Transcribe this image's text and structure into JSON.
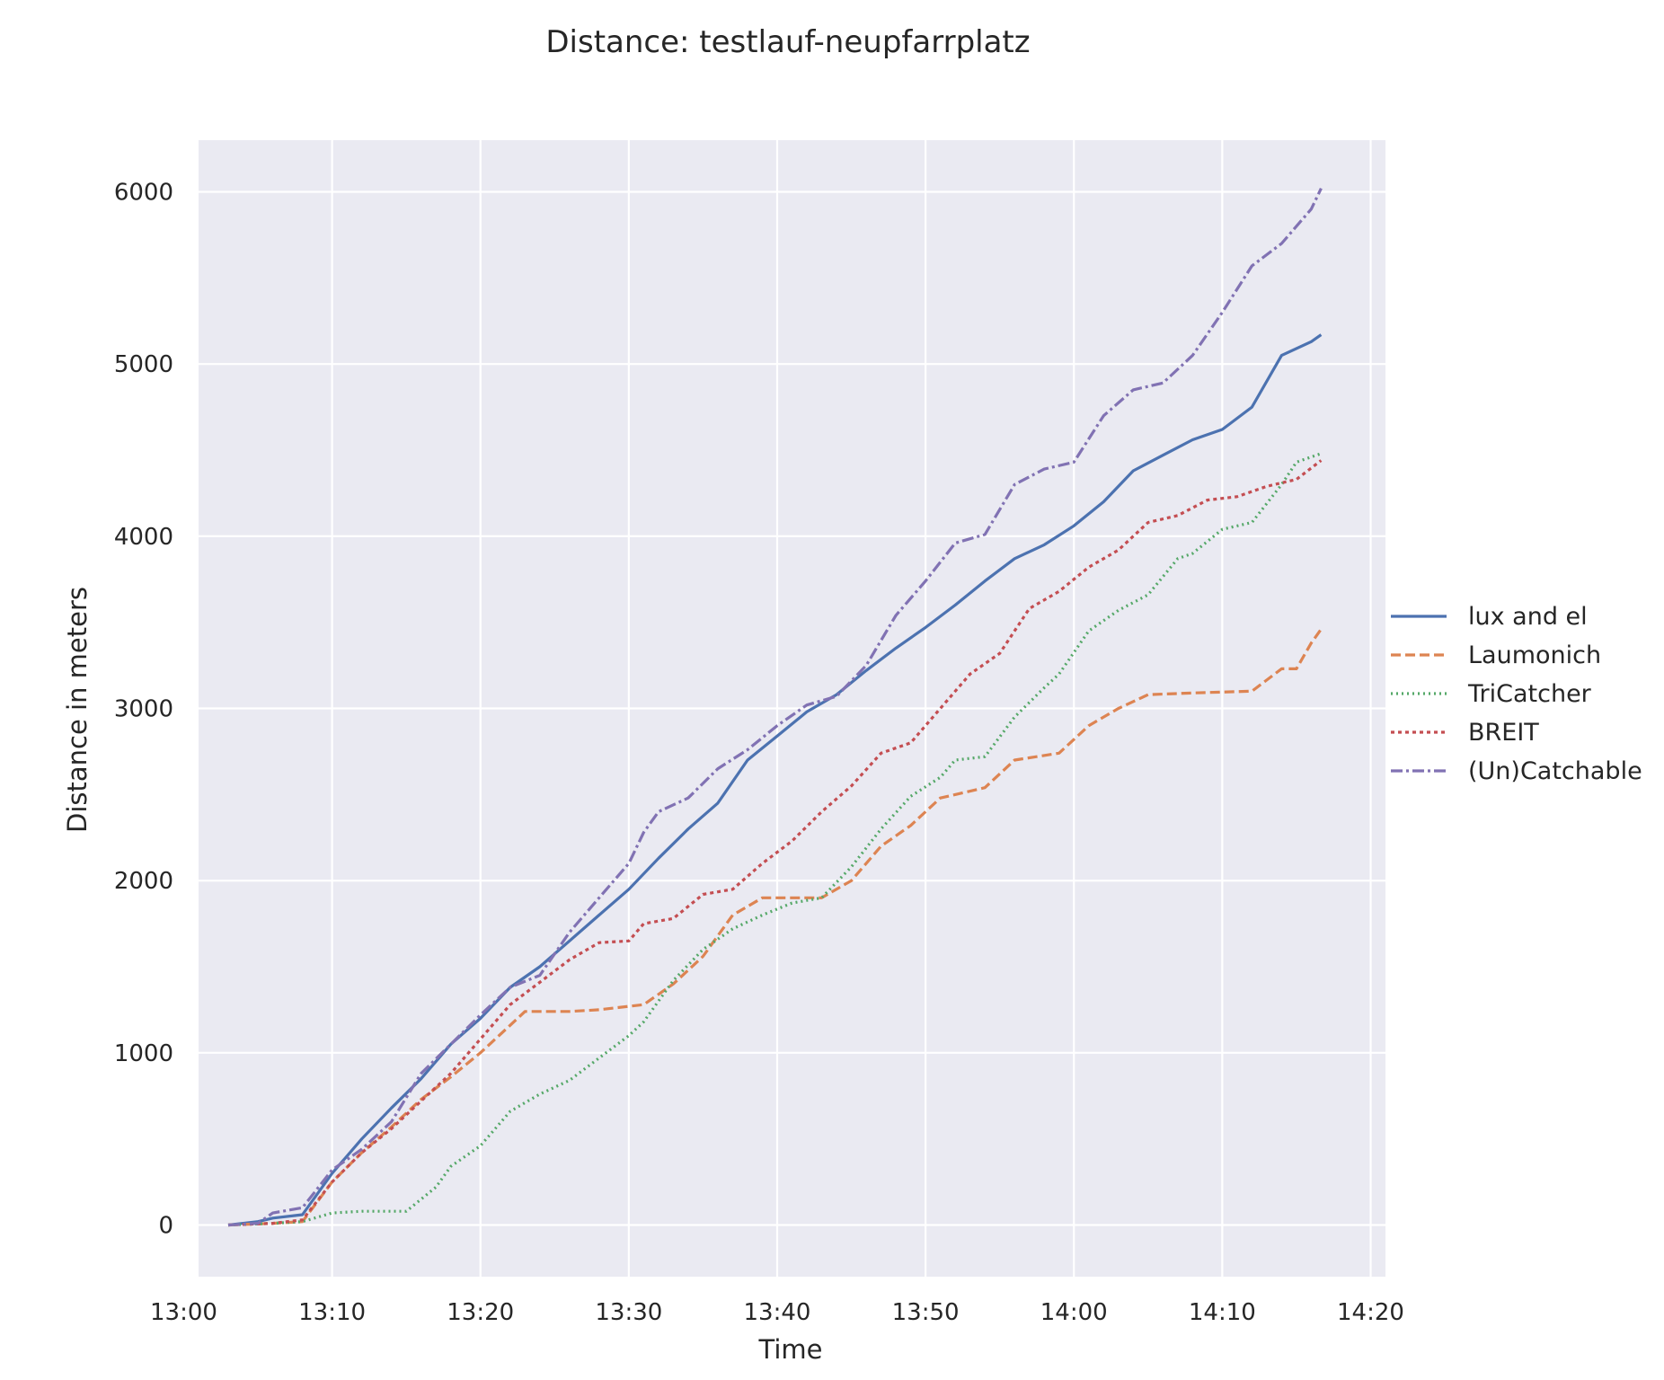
{
  "chart_data": {
    "type": "line",
    "title": "Distance: testlauf-neupfarrplatz",
    "xlabel": "Time",
    "ylabel": "Distance in meters",
    "xlim": [
      "13:01",
      "14:21"
    ],
    "ylim": [
      -300,
      6300
    ],
    "x_ticks": [
      "13:00",
      "13:10",
      "13:20",
      "13:30",
      "13:40",
      "13:50",
      "14:00",
      "14:10",
      "14:20"
    ],
    "y_ticks": [
      0,
      1000,
      2000,
      3000,
      4000,
      5000,
      6000
    ],
    "grid": true,
    "legend_position": "right",
    "background": "#eaeaf2",
    "series": [
      {
        "name": "lux and el",
        "color": "#4c72b0",
        "dash": "solid",
        "points": [
          [
            "13:03",
            0
          ],
          [
            "13:05",
            20
          ],
          [
            "13:06",
            40
          ],
          [
            "13:08",
            60
          ],
          [
            "13:10",
            300
          ],
          [
            "13:12",
            500
          ],
          [
            "13:14",
            680
          ],
          [
            "13:16",
            850
          ],
          [
            "13:18",
            1050
          ],
          [
            "13:20",
            1200
          ],
          [
            "13:22",
            1380
          ],
          [
            "13:24",
            1500
          ],
          [
            "13:26",
            1650
          ],
          [
            "13:28",
            1800
          ],
          [
            "13:30",
            1950
          ],
          [
            "13:32",
            2130
          ],
          [
            "13:34",
            2300
          ],
          [
            "13:36",
            2450
          ],
          [
            "13:38",
            2700
          ],
          [
            "13:40",
            2840
          ],
          [
            "13:42",
            2980
          ],
          [
            "13:44",
            3080
          ],
          [
            "13:46",
            3220
          ],
          [
            "13:48",
            3350
          ],
          [
            "13:50",
            3470
          ],
          [
            "13:52",
            3600
          ],
          [
            "13:54",
            3740
          ],
          [
            "13:56",
            3870
          ],
          [
            "13:58",
            3950
          ],
          [
            "14:00",
            4060
          ],
          [
            "14:02",
            4200
          ],
          [
            "14:04",
            4380
          ],
          [
            "14:06",
            4470
          ],
          [
            "14:08",
            4560
          ],
          [
            "14:10",
            4620
          ],
          [
            "14:12",
            4750
          ],
          [
            "14:14",
            5050
          ],
          [
            "14:16",
            5130
          ],
          [
            "14:16:40",
            5170
          ]
        ]
      },
      {
        "name": "Laumonich",
        "color": "#dd8452",
        "dash": "dashed",
        "points": [
          [
            "13:03",
            0
          ],
          [
            "13:06",
            10
          ],
          [
            "13:08",
            20
          ],
          [
            "13:10",
            250
          ],
          [
            "13:12",
            420
          ],
          [
            "13:14",
            570
          ],
          [
            "13:16",
            730
          ],
          [
            "13:18",
            860
          ],
          [
            "13:20",
            1000
          ],
          [
            "13:22",
            1160
          ],
          [
            "13:23",
            1240
          ],
          [
            "13:26",
            1240
          ],
          [
            "13:28",
            1250
          ],
          [
            "13:31",
            1280
          ],
          [
            "13:33",
            1400
          ],
          [
            "13:35",
            1560
          ],
          [
            "13:37",
            1800
          ],
          [
            "13:39",
            1900
          ],
          [
            "13:43",
            1900
          ],
          [
            "13:45",
            2000
          ],
          [
            "13:47",
            2200
          ],
          [
            "13:49",
            2320
          ],
          [
            "13:51",
            2480
          ],
          [
            "13:54",
            2540
          ],
          [
            "13:56",
            2700
          ],
          [
            "13:59",
            2740
          ],
          [
            "14:01",
            2900
          ],
          [
            "14:03",
            3000
          ],
          [
            "14:05",
            3080
          ],
          [
            "14:08",
            3090
          ],
          [
            "14:12",
            3100
          ],
          [
            "14:14",
            3230
          ],
          [
            "14:15",
            3230
          ],
          [
            "14:16",
            3380
          ],
          [
            "14:16:40",
            3460
          ]
        ]
      },
      {
        "name": "TriCatcher",
        "color": "#55a868",
        "dash": "dotted",
        "points": [
          [
            "13:03",
            0
          ],
          [
            "13:06",
            10
          ],
          [
            "13:08",
            20
          ],
          [
            "13:10",
            70
          ],
          [
            "13:12",
            80
          ],
          [
            "13:15",
            80
          ],
          [
            "13:17",
            220
          ],
          [
            "13:18",
            340
          ],
          [
            "13:20",
            460
          ],
          [
            "13:22",
            660
          ],
          [
            "13:24",
            760
          ],
          [
            "13:26",
            840
          ],
          [
            "13:28",
            970
          ],
          [
            "13:30",
            1100
          ],
          [
            "13:31",
            1180
          ],
          [
            "13:33",
            1420
          ],
          [
            "13:35",
            1600
          ],
          [
            "13:37",
            1720
          ],
          [
            "13:39",
            1800
          ],
          [
            "13:41",
            1870
          ],
          [
            "13:43",
            1900
          ],
          [
            "13:45",
            2080
          ],
          [
            "13:47",
            2300
          ],
          [
            "13:49",
            2490
          ],
          [
            "13:51",
            2600
          ],
          [
            "13:52",
            2700
          ],
          [
            "13:54",
            2720
          ],
          [
            "13:56",
            2950
          ],
          [
            "13:58",
            3120
          ],
          [
            "13:59",
            3200
          ],
          [
            "14:01",
            3450
          ],
          [
            "14:03",
            3570
          ],
          [
            "14:05",
            3660
          ],
          [
            "14:07",
            3870
          ],
          [
            "14:08",
            3900
          ],
          [
            "14:10",
            4040
          ],
          [
            "14:12",
            4080
          ],
          [
            "14:14",
            4300
          ],
          [
            "14:15",
            4430
          ],
          [
            "14:16:40",
            4480
          ]
        ]
      },
      {
        "name": "BREIT",
        "color": "#c44e52",
        "dash": "dotted-red",
        "points": [
          [
            "13:03",
            0
          ],
          [
            "13:06",
            10
          ],
          [
            "13:08",
            30
          ],
          [
            "13:10",
            250
          ],
          [
            "13:12",
            420
          ],
          [
            "13:14",
            560
          ],
          [
            "13:16",
            720
          ],
          [
            "13:18",
            880
          ],
          [
            "13:20",
            1080
          ],
          [
            "13:22",
            1280
          ],
          [
            "13:24",
            1410
          ],
          [
            "13:26",
            1540
          ],
          [
            "13:28",
            1640
          ],
          [
            "13:30",
            1650
          ],
          [
            "13:31",
            1750
          ],
          [
            "13:33",
            1780
          ],
          [
            "13:35",
            1920
          ],
          [
            "13:37",
            1950
          ],
          [
            "13:39",
            2100
          ],
          [
            "13:41",
            2230
          ],
          [
            "13:43",
            2400
          ],
          [
            "13:45",
            2550
          ],
          [
            "13:47",
            2740
          ],
          [
            "13:49",
            2800
          ],
          [
            "13:51",
            3000
          ],
          [
            "13:53",
            3200
          ],
          [
            "13:55",
            3320
          ],
          [
            "13:57",
            3580
          ],
          [
            "13:59",
            3680
          ],
          [
            "14:01",
            3820
          ],
          [
            "14:03",
            3920
          ],
          [
            "14:05",
            4080
          ],
          [
            "14:07",
            4120
          ],
          [
            "14:09",
            4210
          ],
          [
            "14:11",
            4230
          ],
          [
            "14:13",
            4290
          ],
          [
            "14:15",
            4330
          ],
          [
            "14:16:40",
            4440
          ]
        ]
      },
      {
        "name": "(Un)Catchable",
        "color": "#8172b3",
        "dash": "dashdot",
        "points": [
          [
            "13:03",
            0
          ],
          [
            "13:05",
            10
          ],
          [
            "13:06",
            70
          ],
          [
            "13:08",
            100
          ],
          [
            "13:10",
            320
          ],
          [
            "13:12",
            440
          ],
          [
            "13:14",
            600
          ],
          [
            "13:16",
            880
          ],
          [
            "13:18",
            1050
          ],
          [
            "13:20",
            1220
          ],
          [
            "13:22",
            1380
          ],
          [
            "13:24",
            1450
          ],
          [
            "13:26",
            1700
          ],
          [
            "13:28",
            1900
          ],
          [
            "13:30",
            2100
          ],
          [
            "13:31",
            2280
          ],
          [
            "13:32",
            2400
          ],
          [
            "13:34",
            2480
          ],
          [
            "13:36",
            2650
          ],
          [
            "13:38",
            2760
          ],
          [
            "13:40",
            2900
          ],
          [
            "13:42",
            3020
          ],
          [
            "13:44",
            3070
          ],
          [
            "13:46",
            3250
          ],
          [
            "13:48",
            3540
          ],
          [
            "13:50",
            3740
          ],
          [
            "13:52",
            3960
          ],
          [
            "13:54",
            4010
          ],
          [
            "13:56",
            4300
          ],
          [
            "13:58",
            4390
          ],
          [
            "14:00",
            4430
          ],
          [
            "14:02",
            4700
          ],
          [
            "14:04",
            4850
          ],
          [
            "14:06",
            4890
          ],
          [
            "14:08",
            5050
          ],
          [
            "14:10",
            5300
          ],
          [
            "14:12",
            5570
          ],
          [
            "14:14",
            5700
          ],
          [
            "14:16",
            5900
          ],
          [
            "14:16:40",
            6020
          ]
        ]
      }
    ]
  }
}
